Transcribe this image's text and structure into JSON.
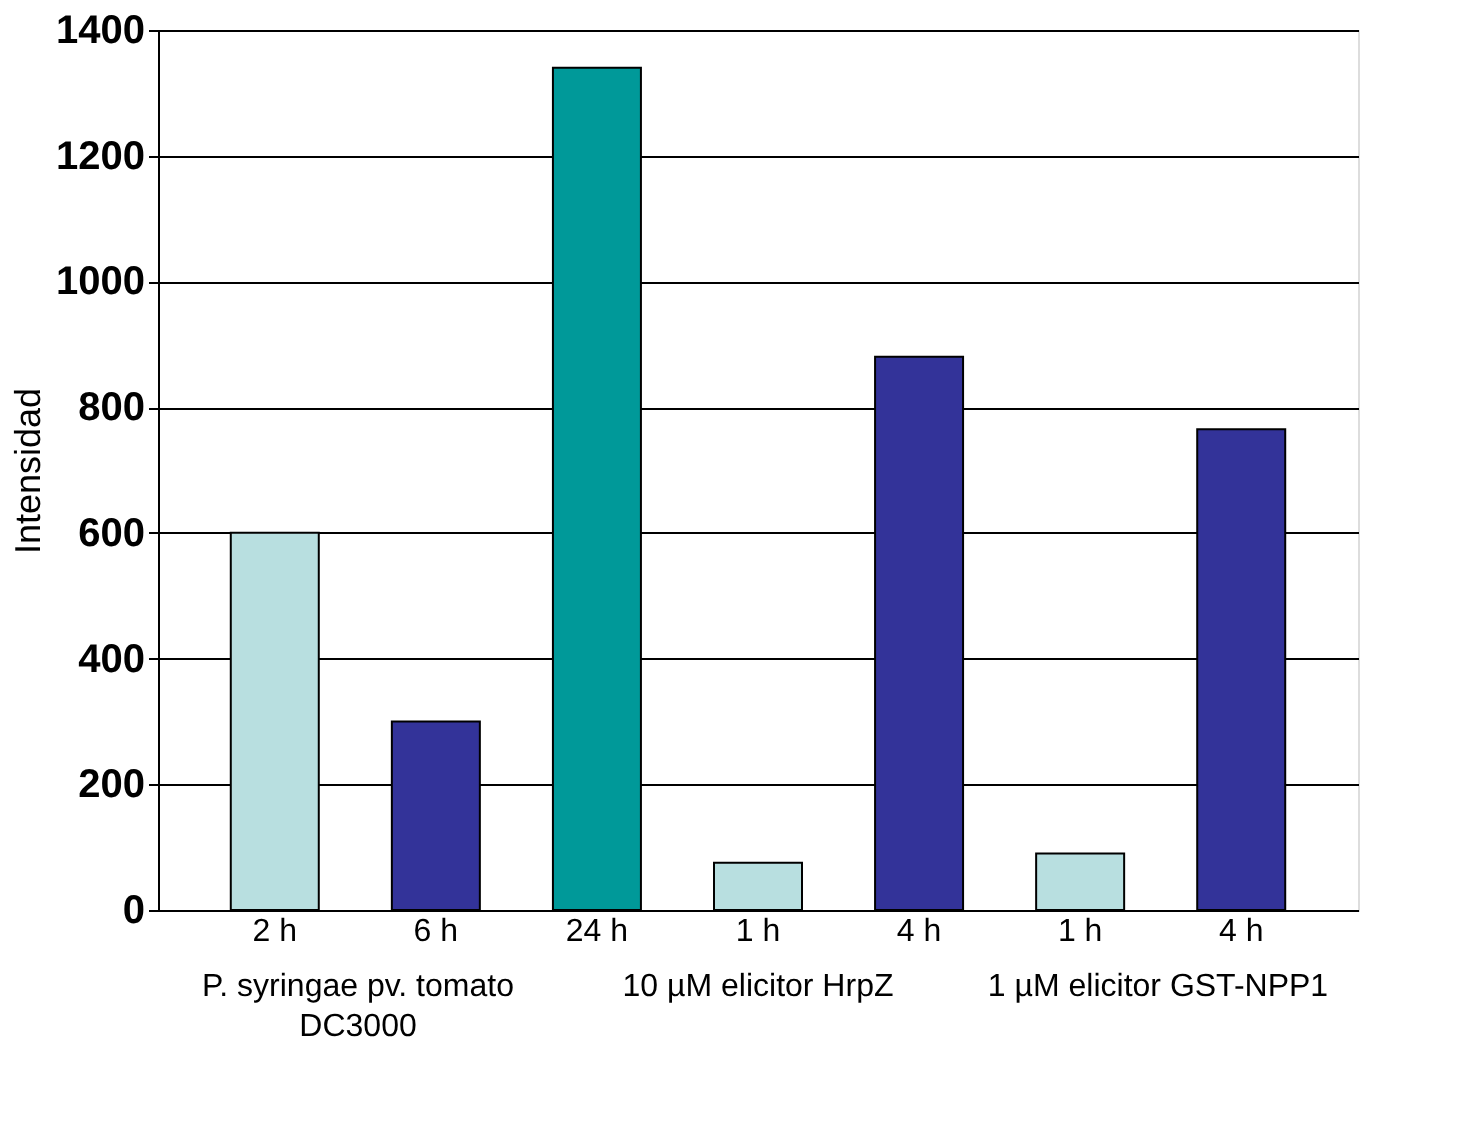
{
  "chart_data": {
    "type": "bar",
    "ylabel": "Intensidad",
    "categories": [
      "2 h",
      "6 h",
      "24 h",
      "1 h",
      "4 h",
      "1 h",
      "4 h"
    ],
    "values": [
      600,
      300,
      1340,
      75,
      880,
      90,
      765
    ],
    "colors": [
      "#b8dfe0",
      "#333399",
      "#009999",
      "#b8dfe0",
      "#333399",
      "#b8dfe0",
      "#333399"
    ],
    "ylim": [
      0,
      1400
    ],
    "yticks": [
      0,
      200,
      400,
      600,
      800,
      1000,
      1200,
      1400
    ],
    "grid": "y",
    "annotations": [
      "P. syringae pv. tomato\nDC3000",
      "10 µM elicitor HrpZ",
      "1 µM elicitor GST-NPP1"
    ]
  }
}
